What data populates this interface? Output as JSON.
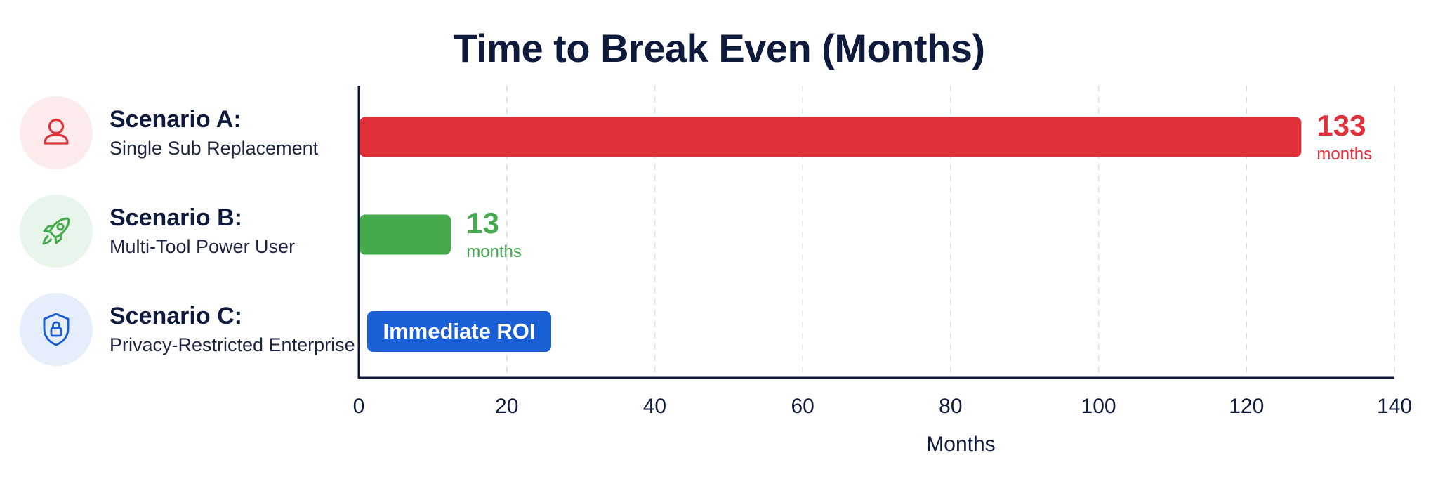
{
  "colors": {
    "scenario_a": "#e0313a",
    "scenario_b": "#44a84d",
    "scenario_c": "#1a5fd6",
    "icon_bg_a": "#fdebec",
    "icon_bg_b": "#e8f5ea",
    "icon_bg_c": "#e6eefb",
    "grid": "#d9dce3",
    "axis": "#0f1b3d"
  },
  "scenarios": [
    {
      "name": "Scenario A:",
      "description": "Single Sub Replacement",
      "icon": "user-icon"
    },
    {
      "name": "Scenario B:",
      "description": "Multi-Tool Power User",
      "icon": "rocket-icon"
    },
    {
      "name": "Scenario C:",
      "description": "Privacy-Restricted Enterprise",
      "icon": "shield-lock-icon"
    }
  ],
  "chart_data": {
    "type": "bar",
    "orientation": "horizontal",
    "title": "Time to Break Even (Months)",
    "xlabel": "Months",
    "ylabel": "",
    "xlim": [
      0,
      140
    ],
    "xticks": [
      0,
      20,
      40,
      60,
      80,
      100,
      120,
      140
    ],
    "grid": "vertical dashed",
    "categories": [
      "Scenario A: Single Sub Replacement",
      "Scenario B: Multi-Tool Power User",
      "Scenario C: Privacy-Restricted Enterprise"
    ],
    "values": [
      133,
      13,
      0
    ],
    "data_labels": [
      {
        "value": "133",
        "unit": "months"
      },
      {
        "value": "13",
        "unit": "months"
      },
      {
        "value": "Immediate ROI",
        "unit": ""
      }
    ]
  }
}
